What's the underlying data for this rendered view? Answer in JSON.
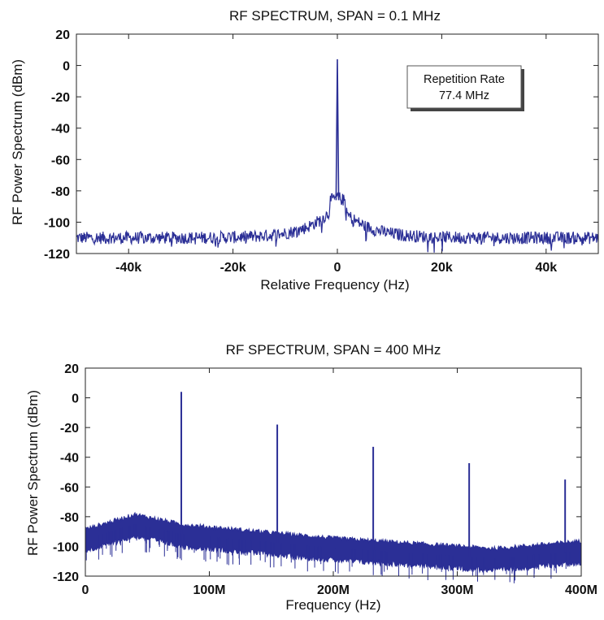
{
  "chart_data": [
    {
      "type": "line",
      "title": "RF SPECTRUM, SPAN = 0.1 MHz",
      "xlabel": "Relative Frequency (Hz)",
      "ylabel": "RF Power Spectrum (dBm)",
      "xlim": [
        -50000,
        50000
      ],
      "ylim": [
        -120,
        20
      ],
      "xticks": [
        -40000,
        -20000,
        0,
        20000,
        40000
      ],
      "xtick_labels": [
        "-40k",
        "-20k",
        "0",
        "20k",
        "40k"
      ],
      "yticks": [
        20,
        0,
        -20,
        -40,
        -60,
        -80,
        -100,
        -120
      ],
      "ytick_labels": [
        "20",
        "0",
        "-20",
        "-40",
        "-60",
        "-80",
        "-100",
        "-120"
      ],
      "grid": false,
      "line_color": "#2b2f96",
      "annotation": {
        "line1": "Repetition Rate",
        "line2": "77.4 MHz"
      },
      "series": [
        {
          "noise_floor_dbm": -110,
          "peaks": [
            {
              "x": 0,
              "y": 4
            }
          ],
          "pedestal_peak_dbm": -88
        }
      ]
    },
    {
      "type": "line",
      "title": "RF SPECTRUM, SPAN = 400 MHz",
      "xlabel": "Frequency (Hz)",
      "ylabel": "RF Power Spectrum (dBm)",
      "xlim": [
        0,
        400000000
      ],
      "ylim": [
        -120,
        20
      ],
      "xticks": [
        0,
        100000000,
        200000000,
        300000000,
        400000000
      ],
      "xtick_labels": [
        "0",
        "100M",
        "200M",
        "300M",
        "400M"
      ],
      "yticks": [
        20,
        0,
        -20,
        -40,
        -60,
        -80,
        -100,
        -120
      ],
      "ytick_labels": [
        "20",
        "0",
        "-20",
        "-40",
        "-60",
        "-80",
        "-100",
        "-120"
      ],
      "grid": false,
      "line_color": "#2b2f96",
      "series": [
        {
          "harmonics": [
            {
              "x": 77400000,
              "y": 4
            },
            {
              "x": 154800000,
              "y": -18
            },
            {
              "x": 232200000,
              "y": -33
            },
            {
              "x": 309600000,
              "y": -44
            },
            {
              "x": 387000000,
              "y": -55
            }
          ],
          "noise_floor_profile": [
            {
              "x": 0,
              "y": -95
            },
            {
              "x": 40000000,
              "y": -85
            },
            {
              "x": 80000000,
              "y": -92
            },
            {
              "x": 200000000,
              "y": -101
            },
            {
              "x": 330000000,
              "y": -108
            },
            {
              "x": 400000000,
              "y": -103
            }
          ]
        }
      ]
    }
  ]
}
